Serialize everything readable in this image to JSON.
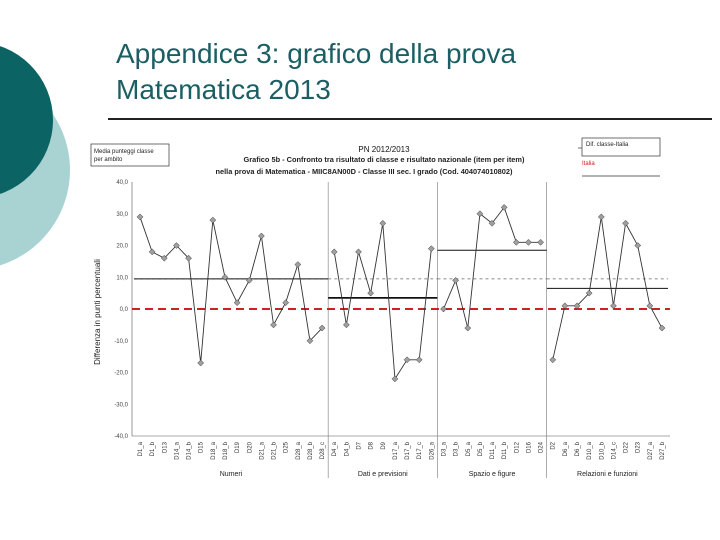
{
  "slide": {
    "title_line1": "Appendice 3: grafico della prova",
    "title_line2": "Matematica 2013"
  },
  "colors": {
    "teal_dark": "#0b6363",
    "teal_light": "#a9d3d3",
    "title": "#1b5e63",
    "grey_marker": "#a0a0a0",
    "red_dash": "#cc2222"
  },
  "chart_data": {
    "type": "line",
    "title": "PN 2012/2013",
    "subtitle_1": "Grafico 5b - Confronto tra risultato di classe e risultato nazionale (item per item)",
    "subtitle_2": "nella prova di Matematica - MIIC8AN00D - Classe III sec. I grado (Cod. 404074010802)",
    "ylabel": "Differenza in punti percentuali",
    "ylim": [
      -40,
      40
    ],
    "yticks": [
      "40,0",
      "30,0",
      "20,0",
      "10,0",
      "0,0",
      "-10,0",
      "-20,0",
      "-30,0",
      "-40,0"
    ],
    "legend_left": [
      "Media punteggi classe",
      "per ambito"
    ],
    "legend_right_1": "Dif. classe-Italia",
    "legend_right_2": "Italia",
    "x": [
      "D1_a",
      "D1_b",
      "D13",
      "D14_a",
      "D14_b",
      "D15",
      "D18_a",
      "D18_b",
      "D19",
      "D20",
      "D21_a",
      "D21_b",
      "D25",
      "D28_a",
      "D28_b",
      "D28_c",
      "D4_a",
      "D4_b",
      "D7",
      "D8",
      "D9",
      "D17_a",
      "D17_b",
      "D17_c",
      "D26_a",
      "D3_a",
      "D3_b",
      "D5_a",
      "D5_b",
      "D11_a",
      "D11_b",
      "D12",
      "D16",
      "D24",
      "D2",
      "D6_a",
      "D6_b",
      "D10_a",
      "D10_b",
      "D14_c",
      "D22",
      "D23",
      "D27_a",
      "D27_b"
    ],
    "values": [
      29,
      18,
      16,
      20,
      16,
      -17,
      28,
      10,
      2,
      9,
      23,
      -5,
      2,
      14,
      -10,
      -6,
      18,
      -5,
      18,
      5,
      27,
      -22,
      -16,
      -16,
      19,
      0,
      9,
      -6,
      30,
      27,
      32,
      21,
      21,
      21,
      -16,
      1,
      1,
      5,
      29,
      1,
      27,
      20,
      1,
      -6
    ],
    "segments": [
      [
        0,
        15
      ],
      [
        16,
        24
      ],
      [
        25,
        33
      ],
      [
        34,
        43
      ]
    ],
    "group_labels": [
      "Numeri",
      "Dati e previsioni",
      "Spazio e figure",
      "Relazioni e funzioni"
    ],
    "group_means": [
      9.5,
      3.5,
      18.5,
      6.5
    ],
    "national_mean": [
      9.5,
      9.5,
      9.5,
      9.5
    ],
    "italy_line": 0
  }
}
